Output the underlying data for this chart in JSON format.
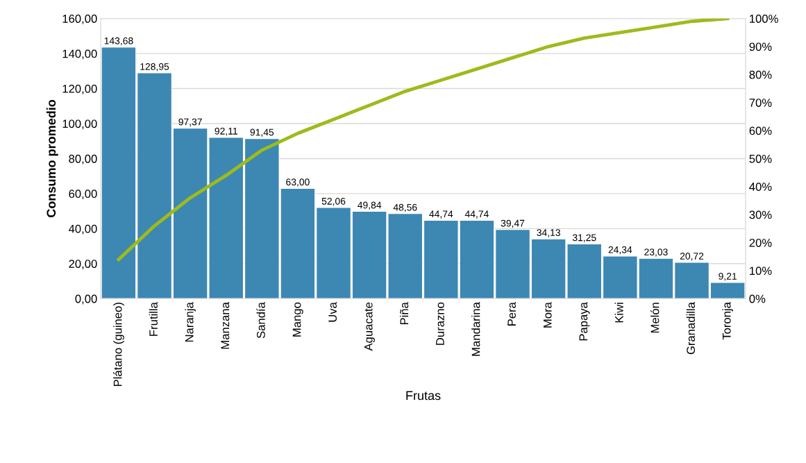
{
  "chart_data": {
    "type": "bar",
    "xlabel": "Frutas",
    "ylabel": "Consumo promedio",
    "categories": [
      "Plátano (guineo)",
      "Frutilla",
      "Naranja",
      "Manzana",
      "Sandía",
      "Mango",
      "Uva",
      "Aguacate",
      "Piña",
      "Durazno",
      "Mandarina",
      "Pera",
      "Mora",
      "Papaya",
      "Kiwi",
      "Melón",
      "Granadilla",
      "Toronja"
    ],
    "series": [
      {
        "color": "#3d87b3",
        "values": [
          143.68,
          128.95,
          97.37,
          92.11,
          91.45,
          63.0,
          52.06,
          49.84,
          48.56,
          44.74,
          44.74,
          39.47,
          34.13,
          31.25,
          24.34,
          23.03,
          20.72,
          9.21
        ],
        "value_labels": [
          "143,68",
          "128,95",
          "97,37",
          "92,11",
          "91,45",
          "63,00",
          "52,06",
          "49,84",
          "48,56",
          "44,74",
          "44,74",
          "39,47",
          "34,13",
          "31,25",
          "24,34",
          "23,03",
          "20,72",
          "9,21"
        ]
      },
      {
        "type": "line",
        "axis": "y2",
        "color": "#9dbb1c",
        "values": [
          14,
          26,
          36,
          44,
          53,
          59,
          64,
          69,
          74,
          78,
          82,
          86,
          90,
          93,
          95,
          97,
          99,
          100
        ]
      }
    ],
    "ylim": [
      0,
      160
    ],
    "yticks": [
      {
        "value": 0,
        "label": "0,00"
      },
      {
        "value": 20,
        "label": "20,00"
      },
      {
        "value": 40,
        "label": "40,00"
      },
      {
        "value": 60,
        "label": "60,00"
      },
      {
        "value": 80,
        "label": "80,00"
      },
      {
        "value": 100,
        "label": "100,00"
      },
      {
        "value": 120,
        "label": "120,00"
      },
      {
        "value": 140,
        "label": "140,00"
      },
      {
        "value": 160,
        "label": "160,00"
      }
    ],
    "y2lim": [
      0,
      100
    ],
    "y2ticks": [
      {
        "value": 0,
        "label": "0%"
      },
      {
        "value": 10,
        "label": "10%"
      },
      {
        "value": 20,
        "label": "20%"
      },
      {
        "value": 30,
        "label": "30%"
      },
      {
        "value": 40,
        "label": "40%"
      },
      {
        "value": 50,
        "label": "50%"
      },
      {
        "value": 60,
        "label": "60%"
      },
      {
        "value": 70,
        "label": "70%"
      },
      {
        "value": 80,
        "label": "80%"
      },
      {
        "value": 90,
        "label": "90%"
      },
      {
        "value": 100,
        "label": "100%"
      }
    ],
    "grid": "y"
  }
}
